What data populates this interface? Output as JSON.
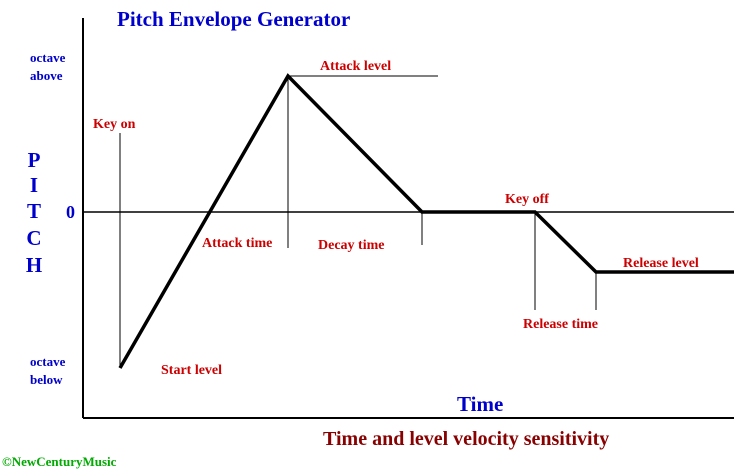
{
  "title": "Pitch Envelope Generator",
  "y_axis": {
    "letters": [
      "P",
      "I",
      "T",
      "C",
      "H"
    ],
    "top_label": [
      "octave",
      "above"
    ],
    "zero_label": "0",
    "bottom_label": [
      "octave",
      "below"
    ]
  },
  "x_axis_label": "Time",
  "annotations": {
    "key_on": "Key on",
    "start_level": "Start level",
    "attack_time": "Attack time",
    "attack_level": "Attack level",
    "decay_time": "Decay time",
    "key_off": "Key off",
    "release_time": "Release time",
    "release_level": "Release level"
  },
  "subtitle": "Time and level velocity sensitivity",
  "copyright": "©NewCenturyMusic",
  "colors": {
    "title": "#0000cc",
    "annotation": "#cc0000",
    "subtitle": "#880000",
    "copyright": "#00aa00",
    "line": "#000000"
  }
}
